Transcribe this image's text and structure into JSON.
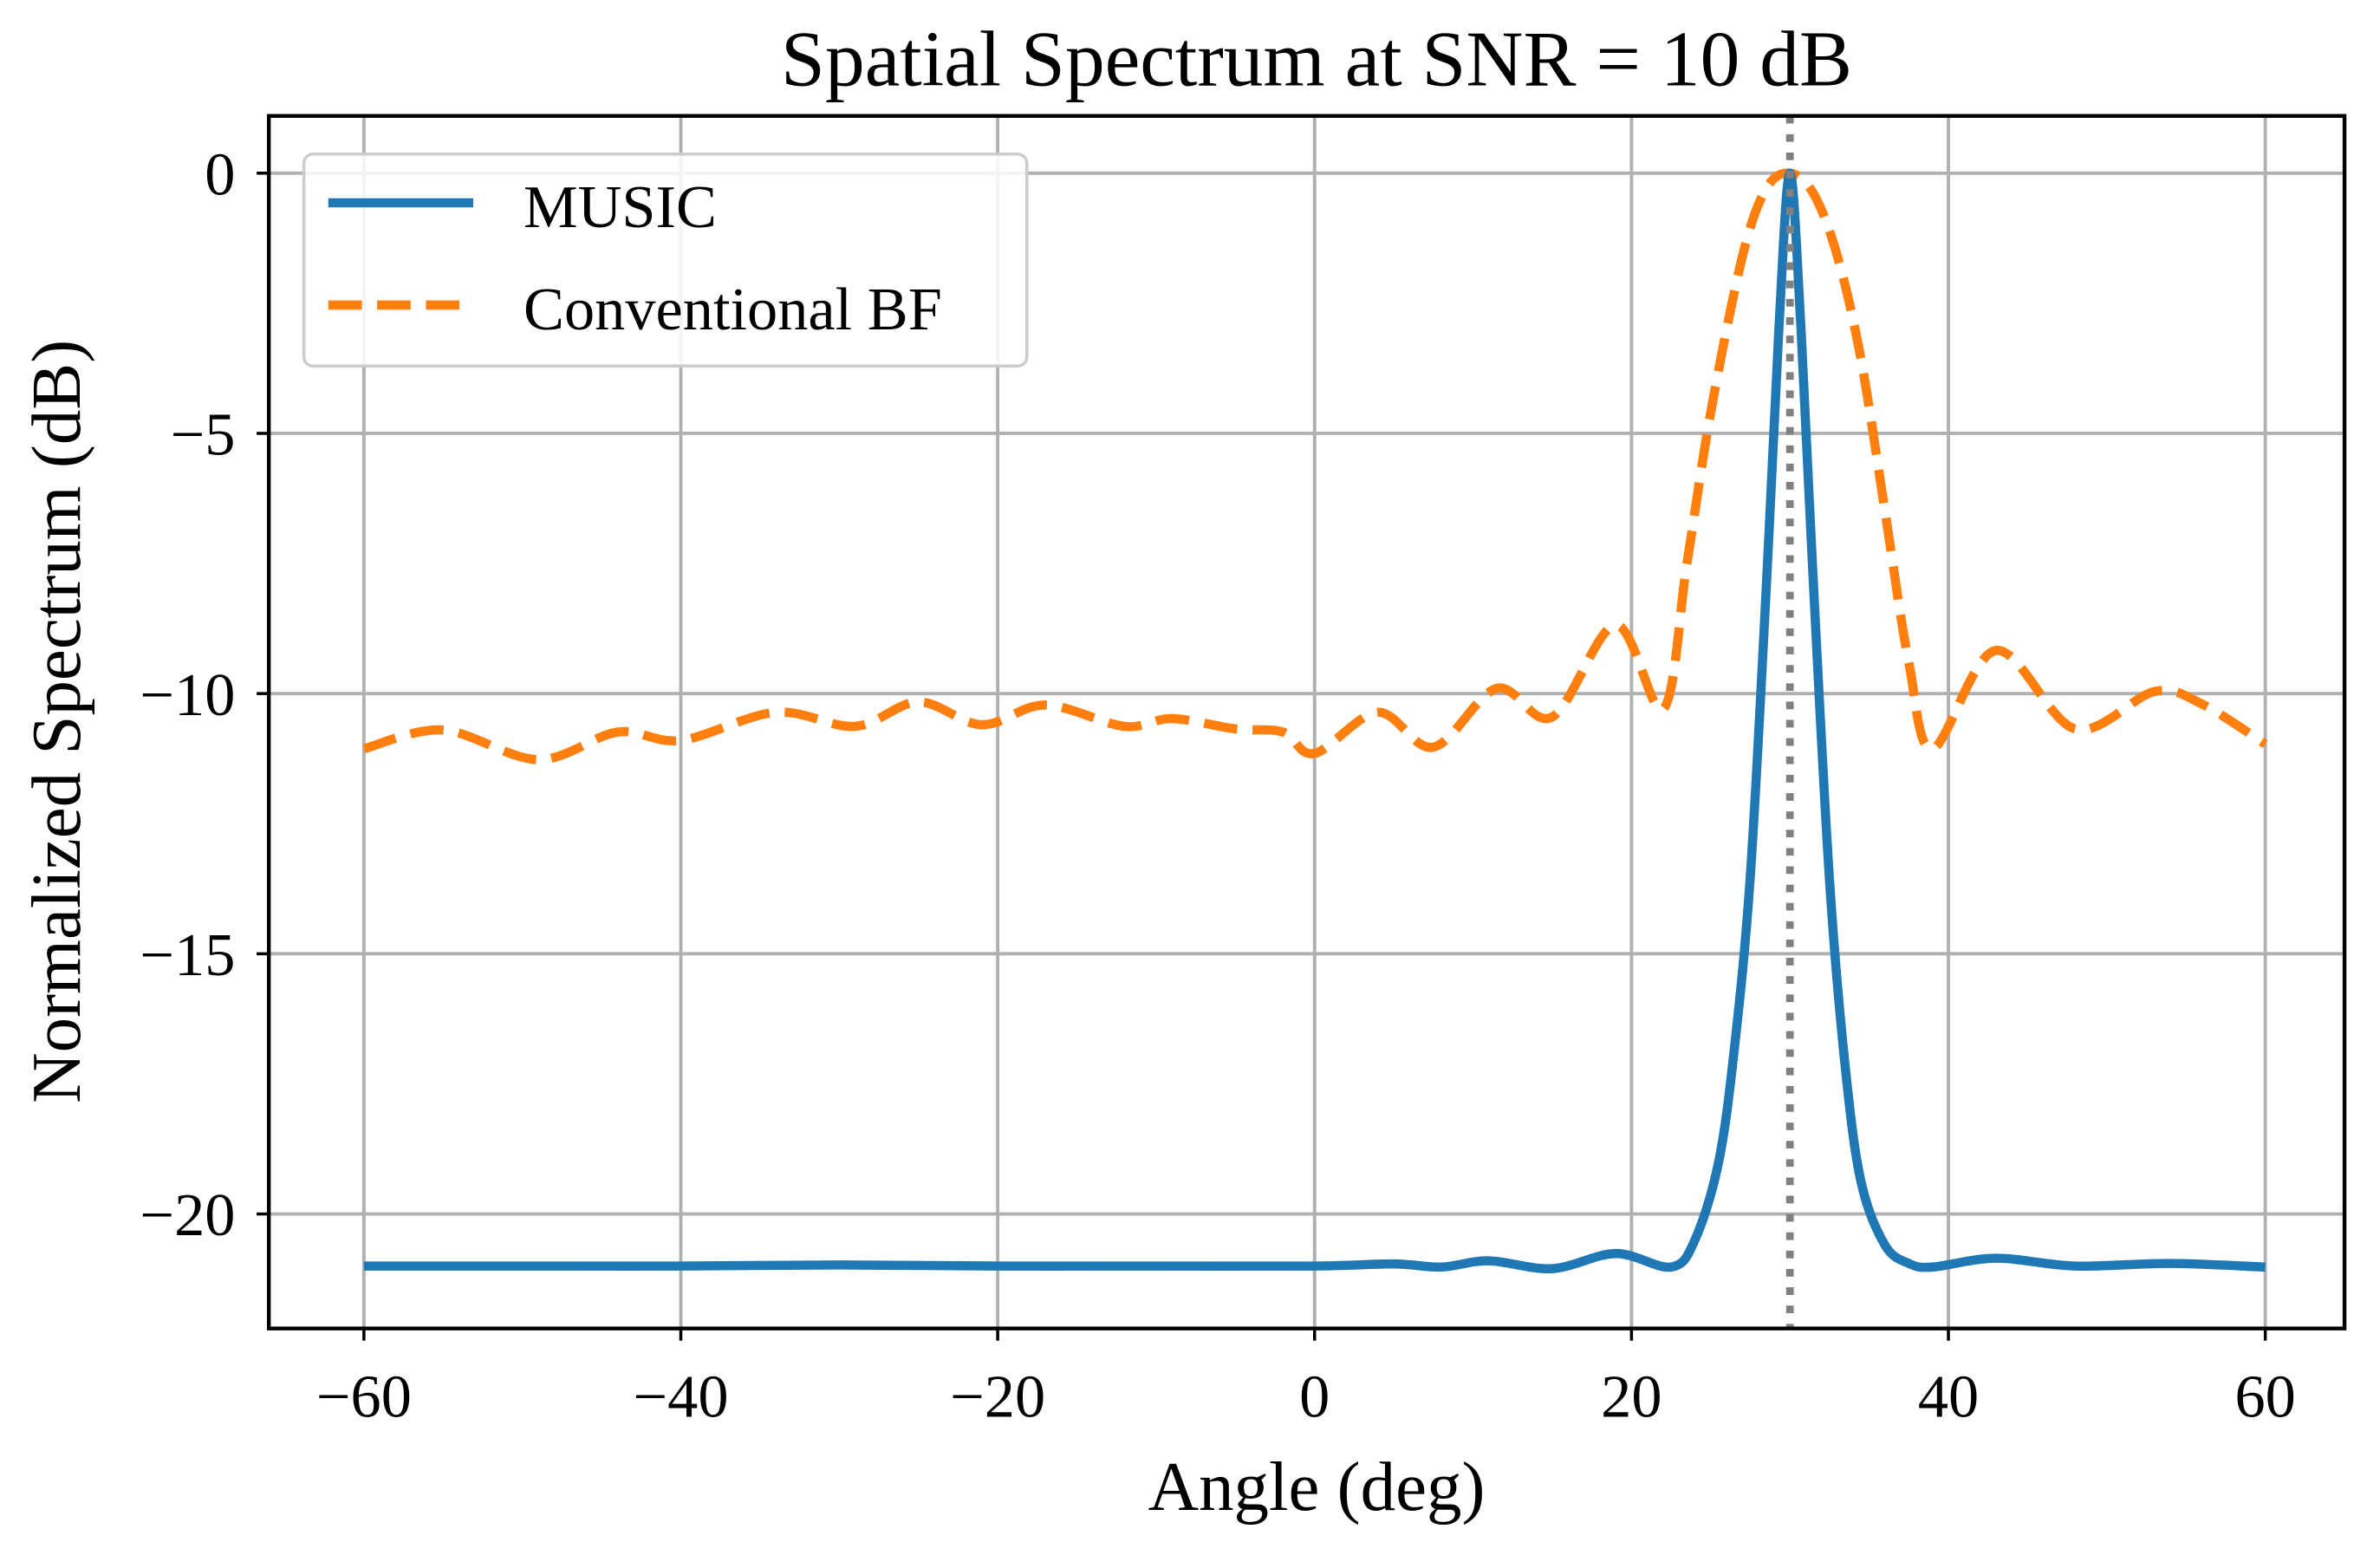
{
  "chart_data": {
    "type": "line",
    "title": "Spatial Spectrum at SNR = 10 dB",
    "xlabel": "Angle (deg)",
    "ylabel": "Normalized Spectrum (dB)",
    "xlim": [
      -66,
      65
    ],
    "ylim": [
      -22.2,
      1.1
    ],
    "xticks": [
      -60,
      -40,
      -20,
      0,
      20,
      40,
      60
    ],
    "xtick_labels": [
      "−60",
      "−40",
      "−20",
      "0",
      "20",
      "40",
      "60"
    ],
    "yticks": [
      0,
      -5,
      -10,
      -15,
      -20
    ],
    "ytick_labels": [
      "0",
      "−5",
      "−10",
      "−15",
      "−20"
    ],
    "grid": true,
    "legend_position": "top-left",
    "true_angle_marker": 30,
    "series": [
      {
        "name": "MUSIC",
        "color": "#1f77b4",
        "style": "solid",
        "x": [
          -60,
          -50,
          -40,
          -30,
          -20,
          -10,
          0,
          5,
          8,
          11,
          15,
          19,
          22.5,
          24,
          25.5,
          26.5,
          27.5,
          28.5,
          29.3,
          30,
          30.7,
          31.5,
          32.5,
          33.5,
          34.5,
          36,
          37.5,
          39,
          43,
          48,
          54,
          60
        ],
        "y": [
          -21.0,
          -21.0,
          -21.0,
          -20.98,
          -21.0,
          -21.0,
          -21.0,
          -20.96,
          -21.02,
          -20.9,
          -21.05,
          -20.76,
          -21.02,
          -20.5,
          -19.0,
          -16.8,
          -13.5,
          -8.0,
          -3.0,
          0,
          -3.0,
          -8.0,
          -13.6,
          -17.2,
          -19.4,
          -20.6,
          -20.95,
          -21.02,
          -20.85,
          -21.0,
          -20.95,
          -21.02
        ]
      },
      {
        "name": "Conventional BF",
        "color": "#ff7f0e",
        "style": "dashed",
        "x": [
          -60,
          -55,
          -49,
          -44,
          -40,
          -34,
          -29,
          -25,
          -21,
          -17,
          -12,
          -9,
          -5,
          -2,
          0,
          4,
          7.5,
          11.5,
          15,
          19,
          22,
          23.5,
          25,
          27,
          28.5,
          30,
          31.5,
          33,
          34.5,
          36,
          37.5,
          39,
          43,
          48,
          53,
          56,
          60
        ],
        "y": [
          -11.06,
          -10.7,
          -11.27,
          -10.74,
          -10.9,
          -10.36,
          -10.63,
          -10.16,
          -10.6,
          -10.22,
          -10.63,
          -10.48,
          -10.68,
          -10.74,
          -11.15,
          -10.36,
          -11.03,
          -9.9,
          -10.45,
          -8.68,
          -10.3,
          -7.5,
          -4.6,
          -1.6,
          -0.3,
          0,
          -0.4,
          -1.6,
          -3.6,
          -6.5,
          -9.4,
          -11.06,
          -9.17,
          -10.68,
          -9.96,
          -10.2,
          -10.97
        ]
      }
    ]
  }
}
